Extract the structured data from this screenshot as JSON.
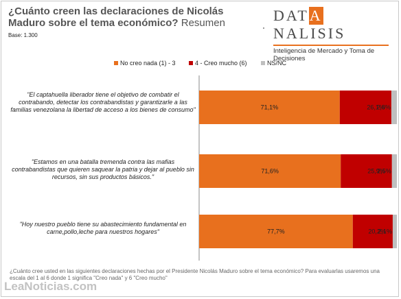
{
  "header": {
    "title": "¿Cuánto creen las declaraciones de Nicolás Maduro sobre el tema económico?",
    "title_suffix": "Resumen",
    "base": "Base: 1.300"
  },
  "logo": {
    "word_before": "DAT",
    "word_highlight": "A",
    "word_after": "NALISIS",
    "tagline": "Inteligencia de Mercado y Toma de Decisiones"
  },
  "chart_data": {
    "type": "bar",
    "orientation": "horizontal",
    "stacked": true,
    "categories": [
      "\"El captahuella liberador tiene el objetivo de combatir el contrabando, detectar los contrabandistas y garantizarle a las familias venezolana la libertad de acceso a los bienes de consumo\"",
      "\"Estamos en una batalla tremenda contra las mafias contrabandistas que quieren saquear la patria y dejar al pueblo sin recursos, sin sus productos básicos.\"",
      "\"Hoy nuestro pueblo tiene su abastecimiento fundamental en carne,pollo,leche para nuestros hogares\""
    ],
    "series": [
      {
        "name": "No creo nada (1) - 3",
        "color": "#e8701e",
        "values": [
          71.1,
          71.6,
          77.7
        ],
        "labels": [
          "71,1%",
          "71,6%",
          "77,7%"
        ]
      },
      {
        "name": "4 - Creo mucho (6)",
        "color": "#c00000",
        "values": [
          26.1,
          25.9,
          20.2
        ],
        "labels": [
          "26,1%",
          "25,9%",
          "20,2%"
        ]
      },
      {
        "name": "NS/NC",
        "color": "#bfbfbf",
        "values": [
          2.8,
          2.5,
          2.1
        ],
        "labels": [
          "2,8%",
          "2,5%",
          "2,1%"
        ]
      }
    ],
    "xlim": [
      0,
      100
    ],
    "grid": false,
    "legend_position": "top-right"
  },
  "footer": {
    "question": "¿Cuánto cree usted en las siguientes declaraciones hechas por el Presidente Nicolás Maduro sobre el tema económico? Para evaluarlas usaremos una escala del 1 al 6 donde 1 significa \"Creo nada\" y 6 \"Creo mucho\""
  },
  "watermark": "LeaNoticias.com"
}
